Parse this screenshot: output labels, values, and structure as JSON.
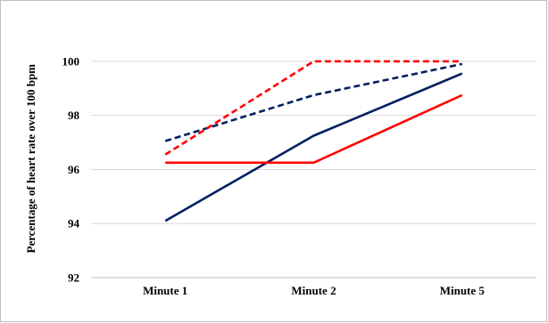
{
  "chart_data": {
    "type": "line",
    "title": "",
    "xlabel": "",
    "ylabel": "Percentage of heart rate over 100 bpm",
    "categories": [
      "Minute 1",
      "Minute 2",
      "Minute 5"
    ],
    "ylim": [
      92,
      101
    ],
    "yticks": [
      92,
      94,
      96,
      98,
      100
    ],
    "grid": "horizontal",
    "legend": "none",
    "series": [
      {
        "values": [
          97.05,
          98.75,
          99.9
        ],
        "color": "#002060",
        "style": "dashed"
      },
      {
        "values": [
          96.55,
          100.0,
          100.0
        ],
        "color": "#ff0000",
        "style": "dashed"
      },
      {
        "values": [
          94.1,
          97.25,
          99.55
        ],
        "color": "#002060",
        "style": "solid"
      },
      {
        "values": [
          96.25,
          96.25,
          98.75
        ],
        "color": "#ff0000",
        "style": "solid"
      }
    ]
  }
}
